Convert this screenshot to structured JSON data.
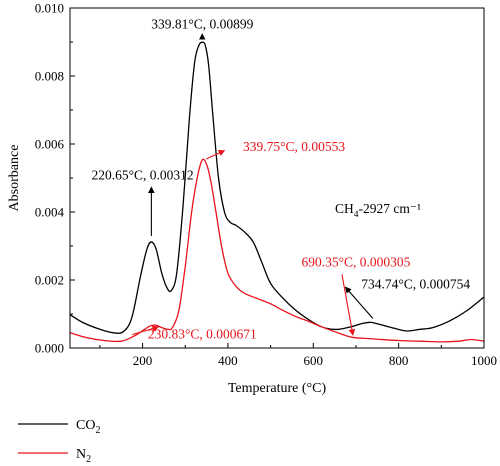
{
  "chart_data": {
    "type": "line",
    "xlabel": "Temperature (°C)",
    "ylabel": "Absorbance",
    "xlim": [
      30,
      1000
    ],
    "ylim": [
      0,
      0.01
    ],
    "x_ticks": [
      200,
      400,
      600,
      800,
      1000
    ],
    "y_ticks": [
      0.0,
      0.002,
      0.004,
      0.006,
      0.008,
      0.01
    ],
    "y_tick_labels": [
      "0.000",
      "0.002",
      "0.004",
      "0.006",
      "0.008",
      "0.010"
    ],
    "grid": false,
    "legend_position": "bottom-left, below plot",
    "gas_label": {
      "main": "CH",
      "sub": "4",
      "rest": "-2927 cm⁻¹"
    },
    "series": [
      {
        "name": "CO2",
        "legend_main": "CO",
        "legend_sub": "2",
        "color": "#000000",
        "points": [
          [
            30,
            0.00098
          ],
          [
            60,
            0.00075
          ],
          [
            100,
            0.00055
          ],
          [
            130,
            0.00045
          ],
          [
            155,
            0.00048
          ],
          [
            175,
            0.0009
          ],
          [
            195,
            0.0021
          ],
          [
            210,
            0.0029
          ],
          [
            220.65,
            0.00312
          ],
          [
            232,
            0.0029
          ],
          [
            245,
            0.0022
          ],
          [
            258,
            0.00175
          ],
          [
            268,
            0.0017
          ],
          [
            280,
            0.0022
          ],
          [
            295,
            0.0042
          ],
          [
            310,
            0.0068
          ],
          [
            322,
            0.0084
          ],
          [
            332,
            0.0089
          ],
          [
            339.81,
            0.00899
          ],
          [
            347,
            0.0089
          ],
          [
            355,
            0.0083
          ],
          [
            365,
            0.0068
          ],
          [
            378,
            0.005
          ],
          [
            392,
            0.004
          ],
          [
            405,
            0.0037
          ],
          [
            420,
            0.0036
          ],
          [
            440,
            0.0034
          ],
          [
            460,
            0.0031
          ],
          [
            480,
            0.0025
          ],
          [
            500,
            0.0019
          ],
          [
            530,
            0.00145
          ],
          [
            560,
            0.0011
          ],
          [
            600,
            0.00075
          ],
          [
            630,
            0.00058
          ],
          [
            660,
            0.00055
          ],
          [
            690,
            0.00063
          ],
          [
            715,
            0.00072
          ],
          [
            734.74,
            0.000754
          ],
          [
            760,
            0.00068
          ],
          [
            790,
            0.00058
          ],
          [
            820,
            0.0005
          ],
          [
            850,
            0.00055
          ],
          [
            880,
            0.0006
          ],
          [
            920,
            0.0008
          ],
          [
            960,
            0.0011
          ],
          [
            1000,
            0.0015
          ]
        ]
      },
      {
        "name": "N2",
        "legend_main": "N",
        "legend_sub": "2",
        "color": "#e8141c",
        "points": [
          [
            30,
            0.00045
          ],
          [
            70,
            0.0003
          ],
          [
            110,
            0.00022
          ],
          [
            150,
            0.0002
          ],
          [
            180,
            0.00035
          ],
          [
            205,
            0.00055
          ],
          [
            218,
            0.00065
          ],
          [
            230.83,
            0.000671
          ],
          [
            245,
            0.0006
          ],
          [
            260,
            0.00055
          ],
          [
            270,
            0.0006
          ],
          [
            285,
            0.0011
          ],
          [
            300,
            0.0024
          ],
          [
            315,
            0.004
          ],
          [
            328,
            0.005
          ],
          [
            339.75,
            0.00553
          ],
          [
            350,
            0.0054
          ],
          [
            360,
            0.0049
          ],
          [
            372,
            0.004
          ],
          [
            385,
            0.003
          ],
          [
            400,
            0.0022
          ],
          [
            420,
            0.0018
          ],
          [
            440,
            0.0016
          ],
          [
            470,
            0.00145
          ],
          [
            500,
            0.0013
          ],
          [
            530,
            0.0011
          ],
          [
            560,
            0.00092
          ],
          [
            590,
            0.00078
          ],
          [
            620,
            0.00062
          ],
          [
            650,
            0.00048
          ],
          [
            680,
            0.00035
          ],
          [
            700,
            0.0003
          ],
          [
            730,
            0.00028
          ],
          [
            760,
            0.00025
          ],
          [
            800,
            0.00022
          ],
          [
            850,
            0.0002
          ],
          [
            900,
            0.00018
          ],
          [
            940,
            0.0002
          ],
          [
            970,
            0.00025
          ],
          [
            1000,
            0.0002
          ]
        ]
      }
    ],
    "annotations": [
      {
        "text": "339.81°C, 0.00899",
        "point": [
          339.81,
          0.00899
        ],
        "text_at": [
          340,
          0.0094
        ],
        "color": "#000000"
      },
      {
        "text": "220.65°C, 0.00312",
        "point": [
          220.65,
          0.00312
        ],
        "text_at": [
          200,
          0.00495
        ],
        "color": "#000000"
      },
      {
        "text": "339.75°C, 0.00553",
        "point": [
          339.75,
          0.00553
        ],
        "text_at": [
          555,
          0.0058
        ],
        "color": "#e8141c"
      },
      {
        "text": "690.35°C, 0.000305",
        "point": [
          690.35,
          0.000305
        ],
        "text_at": [
          700,
          0.0024
        ],
        "color": "#e8141c"
      },
      {
        "text": "734.74°C, 0.000754",
        "point": [
          734.74,
          0.000754
        ],
        "text_at": [
          840,
          0.00175
        ],
        "color": "#000000"
      },
      {
        "text": "230.83°C, 0.000671",
        "point": [
          230.83,
          0.000671
        ],
        "text_at": [
          340,
          0.00028
        ],
        "color": "#e8141c"
      }
    ]
  }
}
